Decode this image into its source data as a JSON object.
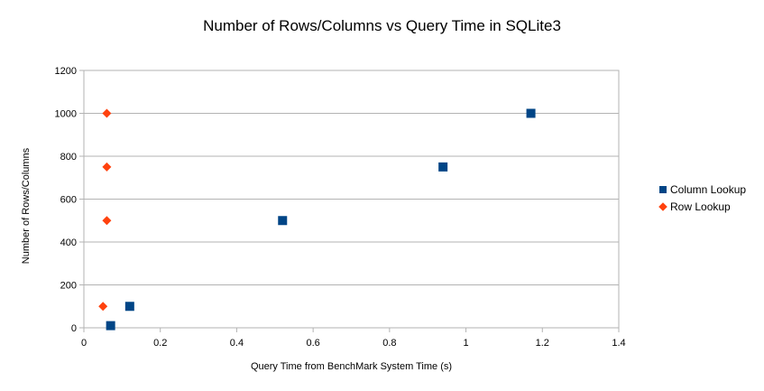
{
  "chart_data": {
    "type": "scatter",
    "title": "Number of Rows/Columns vs Query Time in SQLite3",
    "xlabel": "Query Time from BenchMark System Time (s)",
    "ylabel": "Number of Rows/Columns",
    "xlim": [
      0,
      1.4
    ],
    "ylim": [
      0,
      1200
    ],
    "xticks": [
      "0",
      "0.2",
      "0.4",
      "0.6",
      "0.8",
      "1",
      "1.2",
      "1.4"
    ],
    "yticks": [
      "0",
      "200",
      "400",
      "600",
      "800",
      "1000",
      "1200"
    ],
    "grid": "horizontal",
    "legend_position": "right",
    "series": [
      {
        "name": "Column Lookup",
        "marker": "square",
        "color": "#004586",
        "points": [
          {
            "x": 0.07,
            "y": 10
          },
          {
            "x": 0.12,
            "y": 100
          },
          {
            "x": 0.52,
            "y": 500
          },
          {
            "x": 0.94,
            "y": 750
          },
          {
            "x": 1.17,
            "y": 1000
          }
        ]
      },
      {
        "name": "Row Lookup",
        "marker": "diamond",
        "color": "#ff420e",
        "points": [
          {
            "x": 0.05,
            "y": 100
          },
          {
            "x": 0.06,
            "y": 500
          },
          {
            "x": 0.06,
            "y": 750
          },
          {
            "x": 0.06,
            "y": 1000
          }
        ]
      }
    ]
  }
}
